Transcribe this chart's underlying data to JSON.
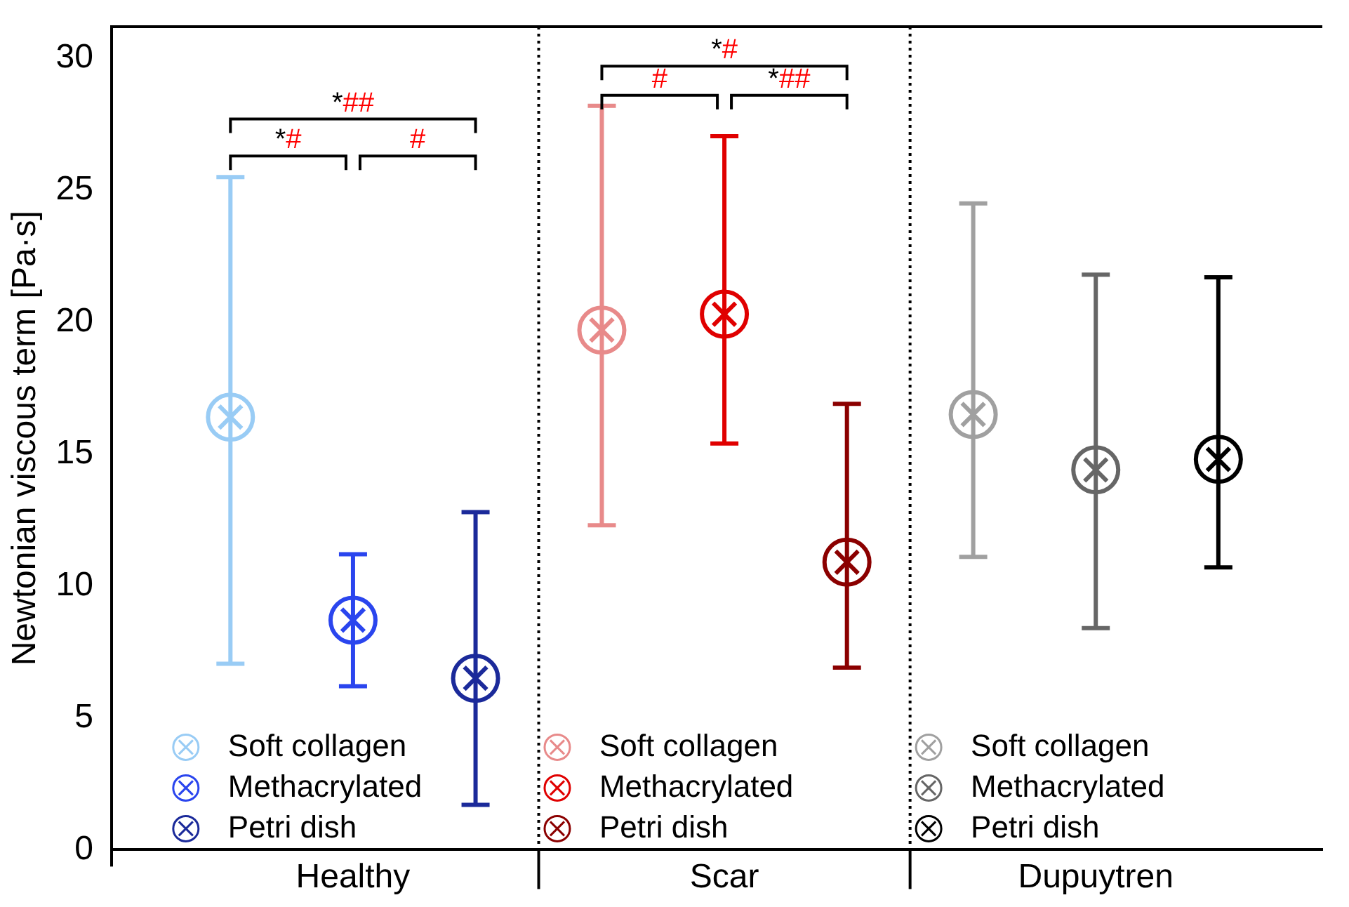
{
  "chart_data": {
    "type": "scatter",
    "ylabel": "Newtonian viscous term [Pa·s]",
    "categories": [
      "Healthy",
      "Scar",
      "Dupuytren"
    ],
    "ylim": [
      0,
      31.2
    ],
    "yticks": [
      0,
      5,
      10,
      15,
      20,
      25,
      30
    ],
    "grid": false,
    "legend": "bottom",
    "series": [
      {
        "name": "Soft collagen",
        "color": "#99ccf5",
        "values": [
          16.4,
          null,
          null
        ],
        "errors": [
          [
            7.05,
            25.5
          ],
          null,
          null
        ]
      },
      {
        "name": "Methacrylated",
        "color": "#2a45ee",
        "values": [
          8.7,
          null,
          null
        ],
        "errors": [
          [
            6.2,
            11.2
          ],
          null,
          null
        ]
      },
      {
        "name": "Petri dish",
        "color": "#1b2a9a",
        "values": [
          6.5,
          null,
          null
        ],
        "errors": [
          [
            1.7,
            12.8
          ],
          null,
          null
        ]
      },
      {
        "name": "Soft collagen",
        "color": "#e88a8a",
        "values": [
          null,
          19.7,
          null
        ],
        "errors": [
          null,
          [
            12.3,
            28.2
          ],
          null
        ]
      },
      {
        "name": "Methacrylated",
        "color": "#e00000",
        "values": [
          null,
          20.3,
          null
        ],
        "errors": [
          null,
          [
            15.4,
            27.05
          ],
          null
        ]
      },
      {
        "name": "Petri dish",
        "color": "#8b0000",
        "values": [
          null,
          10.9,
          null
        ],
        "errors": [
          null,
          [
            6.9,
            16.9
          ],
          null
        ]
      },
      {
        "name": "Soft collagen",
        "color": "#a0a0a0",
        "values": [
          null,
          null,
          16.5
        ],
        "errors": [
          null,
          null,
          [
            11.1,
            24.5
          ]
        ]
      },
      {
        "name": "Methacrylated",
        "color": "#666666",
        "values": [
          null,
          null,
          14.4
        ],
        "errors": [
          null,
          null,
          [
            8.4,
            21.8
          ]
        ]
      },
      {
        "name": "Petri dish",
        "color": "#000000",
        "values": [
          null,
          null,
          14.8
        ],
        "errors": [
          null,
          null,
          [
            10.7,
            21.7
          ]
        ]
      }
    ],
    "annotations": [
      "*##",
      "*#",
      "#",
      "*#",
      "#",
      "*##"
    ]
  }
}
